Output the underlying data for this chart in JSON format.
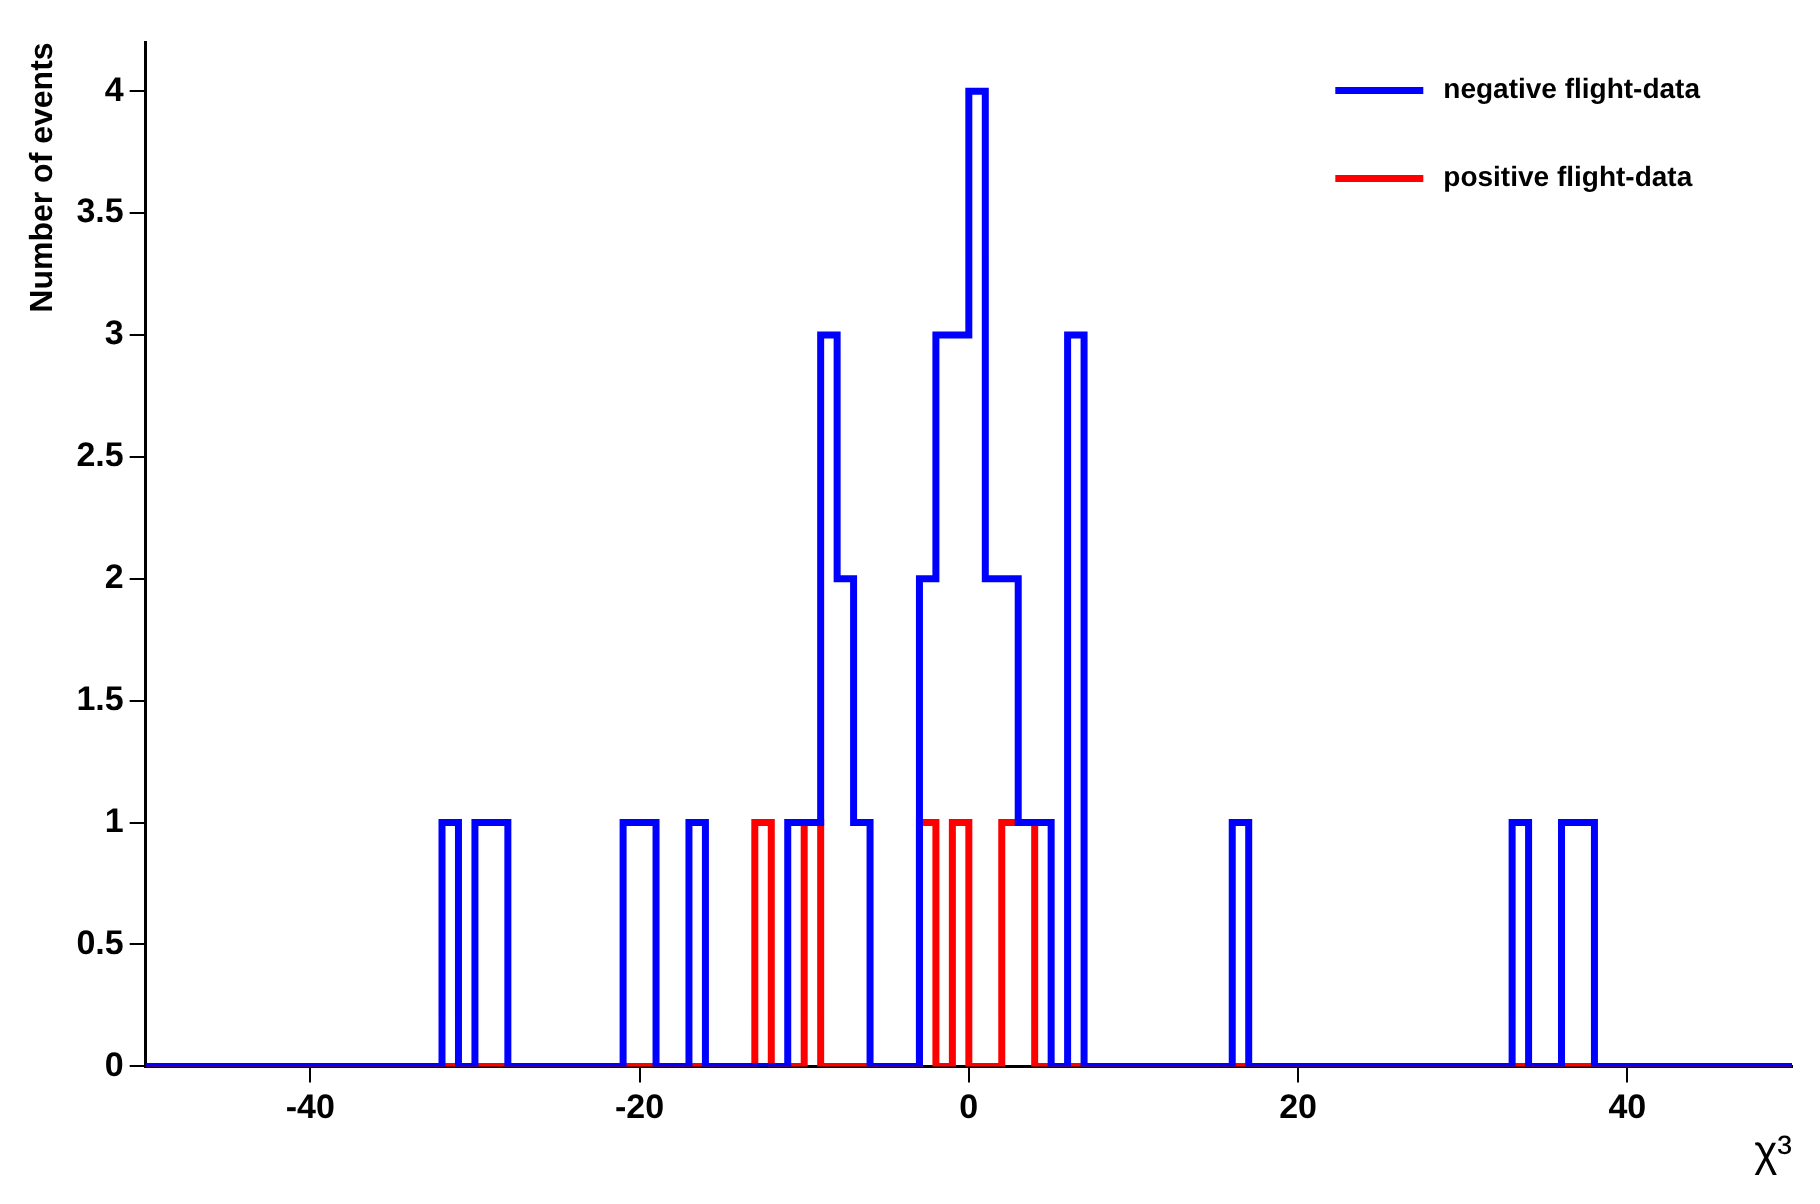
{
  "chart_data": {
    "type": "histogram",
    "xlabel": "χ³",
    "ylabel": "Number of events",
    "bins": [
      -50,
      -49,
      -48,
      -47,
      -46,
      -45,
      -44,
      -43,
      -42,
      -41,
      -40,
      -39,
      -38,
      -37,
      -36,
      -35,
      -34,
      -33,
      -32,
      -31,
      -30,
      -29,
      -28,
      -27,
      -26,
      -25,
      -24,
      -23,
      -22,
      -21,
      -20,
      -19,
      -18,
      -17,
      -16,
      -15,
      -14,
      -13,
      -12,
      -11,
      -10,
      -9,
      -8,
      -7,
      -6,
      -5,
      -4,
      -3,
      -2,
      -1,
      0,
      1,
      2,
      3,
      4,
      5,
      6,
      7,
      8,
      9,
      10,
      11,
      12,
      13,
      14,
      15,
      16,
      17,
      18,
      19,
      20,
      21,
      22,
      23,
      24,
      25,
      26,
      27,
      28,
      29,
      30,
      31,
      32,
      33,
      34,
      35,
      36,
      37,
      38,
      39,
      40,
      41,
      42,
      43,
      44,
      45,
      46,
      47,
      48,
      49,
      50
    ],
    "series": [
      {
        "name": "negative flight-data",
        "color": "#0000ff",
        "values": [
          0,
          0,
          0,
          0,
          0,
          0,
          0,
          0,
          0,
          0,
          0,
          0,
          0,
          0,
          0,
          0,
          0,
          0,
          1,
          0,
          1,
          1,
          0,
          0,
          0,
          0,
          0,
          0,
          0,
          1,
          1,
          0,
          0,
          1,
          0,
          0,
          0,
          0,
          0,
          1,
          1,
          3,
          2,
          1,
          0,
          0,
          0,
          2,
          3,
          3,
          4,
          2,
          2,
          1,
          1,
          0,
          3,
          0,
          0,
          0,
          0,
          0,
          0,
          0,
          0,
          0,
          1,
          0,
          0,
          0,
          0,
          0,
          0,
          0,
          0,
          0,
          0,
          0,
          0,
          0,
          0,
          0,
          0,
          1,
          0,
          0,
          1,
          1,
          0,
          0,
          0,
          0,
          0,
          0,
          0,
          0,
          0,
          0,
          0,
          0
        ]
      },
      {
        "name": "positive flight-data",
        "color": "#ff0000",
        "values": [
          0,
          0,
          0,
          0,
          0,
          0,
          0,
          0,
          0,
          0,
          0,
          0,
          0,
          0,
          0,
          0,
          0,
          0,
          0,
          0,
          0,
          0,
          0,
          0,
          0,
          0,
          0,
          0,
          0,
          0,
          0,
          0,
          0,
          0,
          0,
          0,
          0,
          1,
          0,
          0,
          1,
          0,
          0,
          0,
          0,
          0,
          0,
          1,
          0,
          1,
          0,
          0,
          1,
          1,
          0,
          0,
          0,
          0,
          0,
          0,
          0,
          0,
          0,
          0,
          0,
          0,
          0,
          0,
          0,
          0,
          0,
          0,
          0,
          0,
          0,
          0,
          0,
          0,
          0,
          0,
          0,
          0,
          0,
          0,
          0,
          0,
          0,
          0,
          0,
          0,
          0,
          0,
          0,
          0,
          0,
          0,
          0,
          0,
          0,
          0
        ]
      }
    ],
    "xlim": [
      -50,
      50
    ],
    "xticks": [
      -40,
      -20,
      0,
      20,
      40
    ],
    "ylim": [
      0,
      4.2
    ],
    "yticks": [
      0,
      0.5,
      1,
      1.5,
      2,
      2.5,
      3,
      3.5,
      4
    ],
    "grid": false,
    "legend": "top right"
  }
}
